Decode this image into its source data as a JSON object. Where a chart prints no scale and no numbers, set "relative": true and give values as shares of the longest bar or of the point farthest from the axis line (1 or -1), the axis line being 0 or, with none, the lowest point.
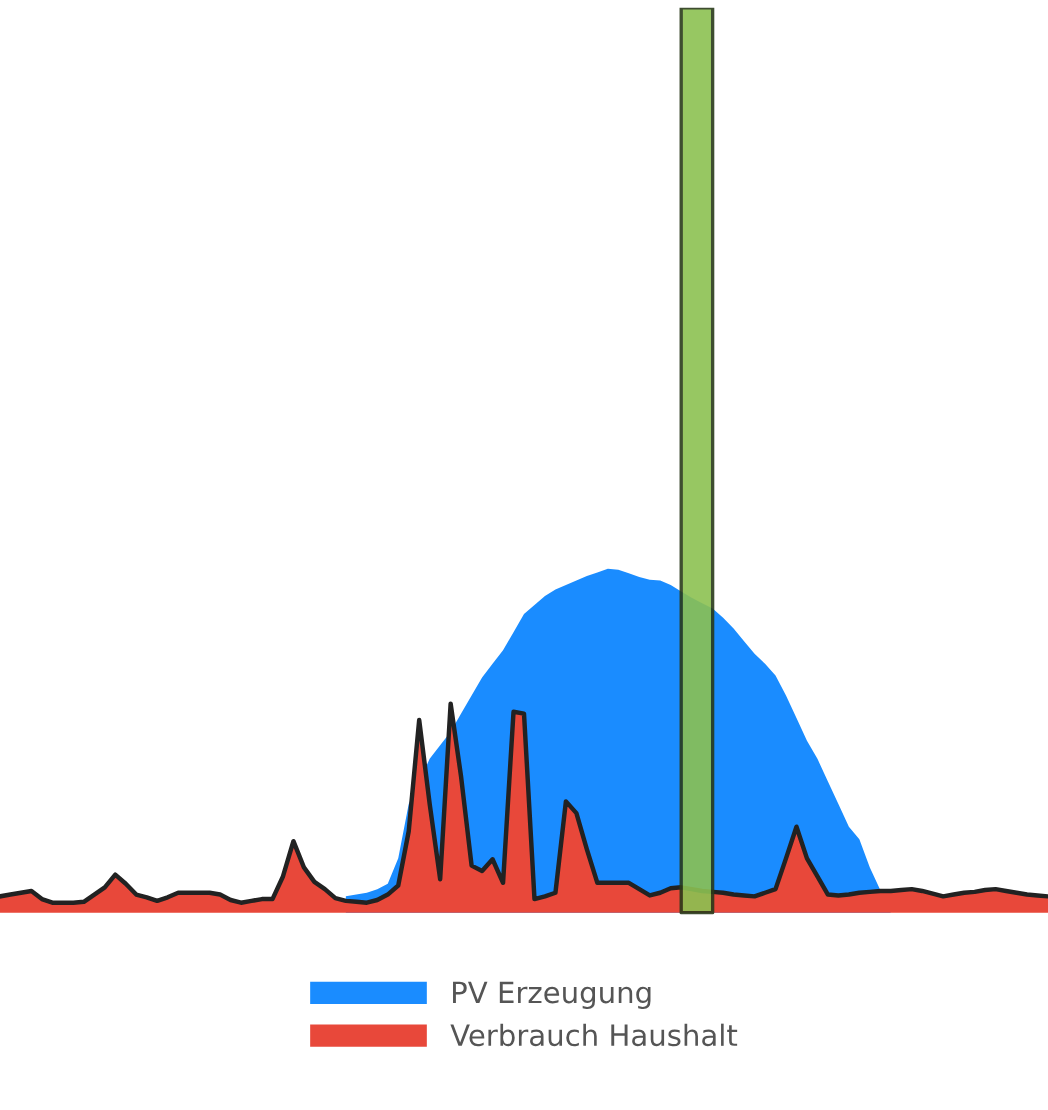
{
  "chart_data": {
    "type": "area",
    "relative": true,
    "legend": "bottom",
    "categories": [
      null,
      null,
      null,
      null,
      null,
      null,
      null,
      null,
      null,
      null,
      null,
      null,
      null,
      null,
      null,
      null,
      null,
      null,
      null,
      null,
      null,
      null,
      null,
      null,
      null,
      null,
      null,
      null,
      null,
      null,
      null,
      null,
      null,
      null,
      null,
      null,
      null,
      null,
      null,
      null,
      null,
      null,
      null,
      null,
      null,
      null,
      null,
      null,
      null,
      null,
      null,
      null,
      null,
      null,
      null,
      null,
      null,
      null,
      null,
      null,
      null,
      null,
      null,
      null,
      null,
      null,
      null,
      null,
      null,
      null,
      null,
      null,
      null,
      null,
      null,
      null,
      null,
      null,
      null,
      null,
      null,
      null,
      null,
      null,
      null,
      null,
      null,
      null,
      null,
      null,
      null,
      null,
      null,
      null,
      null,
      null,
      null,
      null,
      null,
      null,
      null
    ],
    "series": [
      {
        "name": "PV Erzeugung",
        "color": "#1a8cff",
        "values": [
          null,
          null,
          null,
          null,
          null,
          null,
          null,
          null,
          null,
          null,
          null,
          null,
          null,
          null,
          null,
          null,
          null,
          null,
          null,
          null,
          null,
          null,
          null,
          null,
          null,
          null,
          null,
          null,
          null,
          null,
          null,
          null,
          null,
          0.018,
          0.02,
          0.022,
          0.026,
          0.032,
          0.06,
          0.12,
          null,
          0.17,
          0.185,
          0.2,
          0.22,
          0.24,
          0.26,
          0.275,
          0.29,
          0.31,
          0.33,
          0.34,
          0.35,
          0.357,
          0.362,
          0.367,
          0.372,
          0.376,
          0.38,
          0.379,
          0.375,
          0.371,
          0.368,
          0.367,
          0.362,
          0.355,
          0.348,
          0.342,
          0.336,
          0.326,
          0.314,
          0.3,
          0.286,
          0.275,
          0.262,
          0.24,
          0.215,
          0.19,
          0.17,
          0.145,
          0.12,
          0.095,
          0.081,
          0.05,
          null,
          0.0,
          null,
          null,
          null,
          null,
          null,
          null,
          null,
          null,
          null,
          null,
          null,
          null,
          null,
          null,
          null
        ]
      },
      {
        "name": "Verbrauch Haushalt",
        "color": "#e8483a",
        "values": [
          0.018,
          0.02,
          0.022,
          0.024,
          0.015,
          0.011,
          0.011,
          0.011,
          0.012,
          0.02,
          0.028,
          0.042,
          0.032,
          0.02,
          0.017,
          0.013,
          0.017,
          0.022,
          0.022,
          0.022,
          0.022,
          0.02,
          0.014,
          0.011,
          0.013,
          0.015,
          0.015,
          0.04,
          0.079,
          0.05,
          0.034,
          0.026,
          0.016,
          0.013,
          0.012,
          0.011,
          0.014,
          0.02,
          0.03,
          0.09,
          0.213,
          0.12,
          0.037,
          0.231,
          0.15,
          0.052,
          0.046,
          0.059,
          0.033,
          0.222,
          0.22,
          0.015,
          0.018,
          0.022,
          0.123,
          0.11,
          0.07,
          0.033,
          0.033,
          0.033,
          0.033,
          0.026,
          0.019,
          0.022,
          0.027,
          0.028,
          0.026,
          0.024,
          0.023,
          0.022,
          0.02,
          0.019,
          0.018,
          0.022,
          0.026,
          0.06,
          0.095,
          0.06,
          0.04,
          0.02,
          0.019,
          0.02,
          0.022,
          0.023,
          0.024,
          0.024,
          0.025,
          0.026,
          0.024,
          0.021,
          0.018,
          0.02,
          0.022,
          0.023,
          0.025,
          0.026,
          0.024,
          0.022,
          0.02,
          0.019,
          0.018
        ]
      },
      {
        "color": "#8cc152",
        "values": [
          null,
          null,
          null,
          null,
          null,
          null,
          null,
          null,
          null,
          null,
          null,
          null,
          null,
          null,
          null,
          null,
          null,
          null,
          null,
          null,
          null,
          null,
          null,
          null,
          null,
          null,
          null,
          null,
          null,
          null,
          null,
          null,
          null,
          null,
          null,
          null,
          null,
          null,
          null,
          null,
          null,
          null,
          null,
          null,
          null,
          null,
          null,
          null,
          null,
          null,
          null,
          null,
          null,
          null,
          null,
          null,
          null,
          null,
          null,
          null,
          null,
          null,
          null,
          null,
          null,
          1,
          1,
          1,
          1,
          null,
          null,
          null,
          null,
          null,
          null,
          null,
          null,
          null,
          null,
          null,
          null,
          null,
          null,
          null,
          null,
          null,
          null,
          null,
          null,
          null,
          null,
          null,
          null,
          null,
          null,
          null,
          null,
          null,
          null,
          null,
          null
        ]
      }
    ]
  }
}
